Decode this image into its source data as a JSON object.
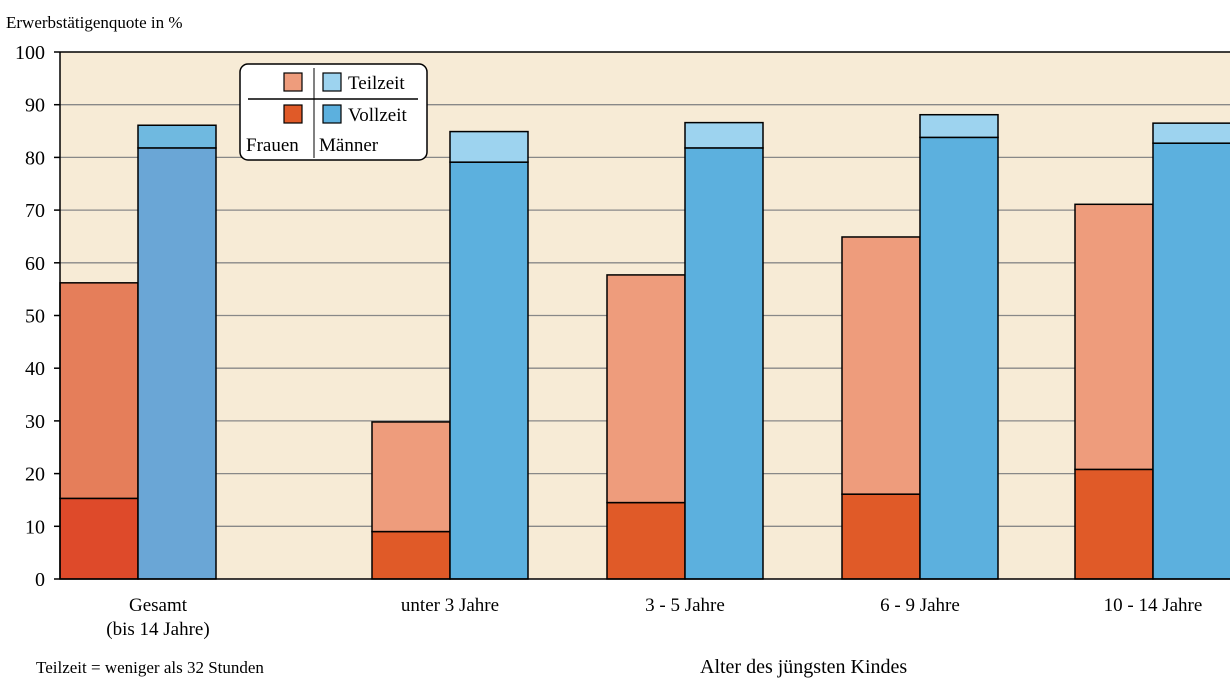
{
  "chart_data": {
    "type": "bar",
    "subtype": "grouped-stacked",
    "title": "",
    "ylabel": "Erwerbstätigenquote in %",
    "xlabel": "Alter des jüngsten Kindes",
    "footnote": "Teilzeit = weniger als 32 Stunden",
    "ylim": [
      0,
      100
    ],
    "yticks": [
      0,
      10,
      20,
      30,
      40,
      50,
      60,
      70,
      80,
      90,
      100
    ],
    "grid": true,
    "legend_position": "top-left",
    "categories": [
      "Gesamt (bis 14 Jahre)",
      "unter 3 Jahre",
      "3 - 5 Jahre",
      "6 - 9 Jahre",
      "10 - 14 Jahre"
    ],
    "category_lines": [
      [
        "Gesamt",
        "(bis 14 Jahre)"
      ],
      [
        "unter 3 Jahre"
      ],
      [
        "3 - 5 Jahre"
      ],
      [
        "6 - 9 Jahre"
      ],
      [
        "10 - 14 Jahre"
      ]
    ],
    "groups": [
      {
        "name": "Frauen",
        "vollzeit": [
          15.3,
          9.0,
          14.5,
          16.1,
          20.8
        ],
        "teilzeit": [
          40.9,
          20.8,
          43.2,
          48.8,
          50.3
        ]
      },
      {
        "name": "Männer",
        "vollzeit": [
          81.8,
          79.1,
          81.8,
          83.8,
          82.7
        ],
        "teilzeit": [
          4.3,
          5.8,
          4.8,
          4.3,
          3.8
        ]
      }
    ],
    "legend": {
      "teilzeit": "Teilzeit",
      "vollzeit": "Vollzeit",
      "frauen": "Frauen",
      "maenner": "Männer"
    },
    "colors": {
      "background": "#f7ebd6",
      "gridline": "#888888",
      "frauen_vollzeit": "#e05a28",
      "frauen_teilzeit": "#ee9c7c",
      "maenner_vollzeit": "#5cb0de",
      "maenner_teilzeit": "#9dd3ef",
      "gesamt_frauen_vollzeit": "#de4a2a",
      "gesamt_frauen_teilzeit": "#e57e5a",
      "gesamt_maenner_vollzeit": "#6aa6d6",
      "gesamt_maenner_teilzeit": "#6fb9e0"
    }
  }
}
